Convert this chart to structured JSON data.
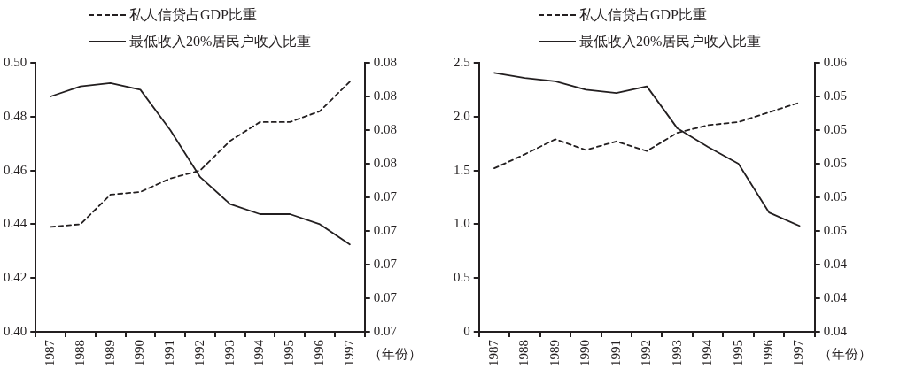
{
  "chart_data": [
    {
      "type": "line",
      "xlabel": "（年份）",
      "legend": "top left",
      "grid": false,
      "marker": "none",
      "categories": [
        "1987",
        "1988",
        "1989",
        "1990",
        "1991",
        "1992",
        "1993",
        "1994",
        "1995",
        "1996",
        "1997"
      ],
      "series": [
        {
          "name": "私人信贷占GDP比重",
          "color": "#231f20",
          "line_style": "dashed",
          "values": [
            0.439,
            0.44,
            0.451,
            0.452,
            0.457,
            0.46,
            0.471,
            0.478,
            0.478,
            0.482,
            0.493
          ]
        },
        {
          "name": "最低收入20%居民户收入比重",
          "color": "#231f20",
          "line_style": "solid",
          "axis": "y2",
          "values": [
            0.077,
            0.0773,
            0.0774,
            0.0772,
            0.076,
            0.0746,
            0.0738,
            0.0735,
            0.0735,
            0.0732,
            0.0726
          ]
        }
      ],
      "ylim": [
        0.4,
        0.5
      ],
      "yticks": [
        {
          "value": 0.4,
          "label": "0.40"
        },
        {
          "value": 0.42,
          "label": "0.42"
        },
        {
          "value": 0.44,
          "label": "0.44"
        },
        {
          "value": 0.46,
          "label": "0.46"
        },
        {
          "value": 0.48,
          "label": "0.48"
        },
        {
          "value": 0.5,
          "label": "0.50"
        }
      ],
      "y2lim": [
        0.07,
        0.078
      ],
      "y2ticks": [
        {
          "value": 0.07,
          "label": "0.07"
        },
        {
          "value": 0.071,
          "label": "0.07"
        },
        {
          "value": 0.072,
          "label": "0.07"
        },
        {
          "value": 0.073,
          "label": "0.07"
        },
        {
          "value": 0.074,
          "label": "0.07"
        },
        {
          "value": 0.075,
          "label": "0.08"
        },
        {
          "value": 0.076,
          "label": "0.08"
        },
        {
          "value": 0.077,
          "label": "0.08"
        },
        {
          "value": 0.078,
          "label": "0.08"
        }
      ]
    },
    {
      "type": "line",
      "xlabel": "（年份）",
      "legend": "top left",
      "grid": false,
      "marker": "none",
      "categories": [
        "1987",
        "1988",
        "1989",
        "1990",
        "1991",
        "1992",
        "1993",
        "1994",
        "1995",
        "1996",
        "1997"
      ],
      "series": [
        {
          "name": "私人信贷占GDP比重",
          "color": "#231f20",
          "line_style": "dashed",
          "values": [
            1.52,
            1.65,
            1.79,
            1.69,
            1.77,
            1.68,
            1.85,
            1.92,
            1.95,
            2.04,
            2.13
          ]
        },
        {
          "name": "最低收入20%居民户收入比重",
          "color": "#231f20",
          "line_style": "solid",
          "axis": "y2",
          "values": [
            0.0554,
            0.0551,
            0.0549,
            0.0544,
            0.0542,
            0.0546,
            0.0521,
            0.051,
            0.05,
            0.0471,
            0.0463
          ]
        }
      ],
      "ylim": [
        0,
        2.5
      ],
      "yticks": [
        {
          "value": 0,
          "label": "0"
        },
        {
          "value": 0.5,
          "label": "0.5"
        },
        {
          "value": 1.0,
          "label": "1.0"
        },
        {
          "value": 1.5,
          "label": "1.5"
        },
        {
          "value": 2.0,
          "label": "2.0"
        },
        {
          "value": 2.5,
          "label": "2.5"
        }
      ],
      "y2lim": [
        0.04,
        0.056
      ],
      "y2ticks": [
        {
          "value": 0.04,
          "label": "0.04"
        },
        {
          "value": 0.042,
          "label": "0.04"
        },
        {
          "value": 0.044,
          "label": "0.04"
        },
        {
          "value": 0.046,
          "label": "0.05"
        },
        {
          "value": 0.048,
          "label": "0.05"
        },
        {
          "value": 0.05,
          "label": "0.05"
        },
        {
          "value": 0.052,
          "label": "0.05"
        },
        {
          "value": 0.054,
          "label": "0.05"
        },
        {
          "value": 0.056,
          "label": "0.06"
        }
      ]
    }
  ]
}
